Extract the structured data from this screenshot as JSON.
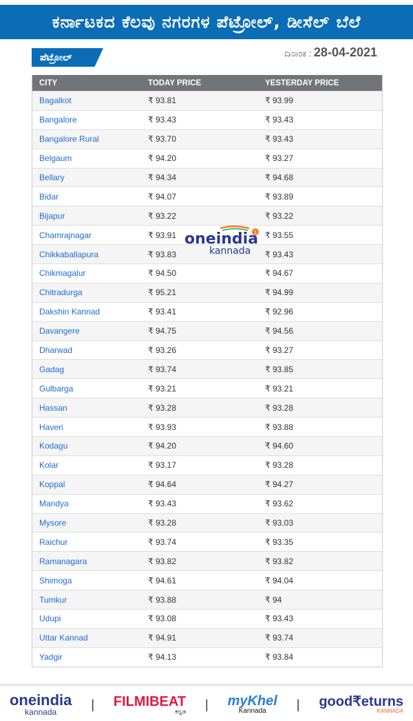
{
  "header": {
    "title": "ಕರ್ನಾಟಕದ ಕೆಲವು ನಗರಗಳ ಪೆಟ್ರೋಲ್, ಡೀಸೆಲ್ ಬೆಲೆ"
  },
  "fuel_tag": "ಪೆಟ್ರೋಲ್",
  "date": {
    "label": "ದಿನಾಂಕ :",
    "value": "28-04-2021"
  },
  "table": {
    "columns": [
      "CITY",
      "TODAY PRICE",
      "YESTERDAY PRICE"
    ],
    "rows": [
      [
        "Bagalkot",
        "₹ 93.81",
        "₹ 93.99"
      ],
      [
        "Bangalore",
        "₹ 93.43",
        "₹ 93.43"
      ],
      [
        "Bangalore Rural",
        "₹ 93.70",
        "₹ 93.43"
      ],
      [
        "Belgaum",
        "₹ 94.20",
        "₹ 93.27"
      ],
      [
        "Bellary",
        "₹ 94.34",
        "₹ 94.68"
      ],
      [
        "Bidar",
        "₹ 94.07",
        "₹ 93.89"
      ],
      [
        "Bijapur",
        "₹ 93.22",
        "₹ 93.22"
      ],
      [
        "Chamrajnagar",
        "₹ 93.91",
        "₹ 93.55"
      ],
      [
        "Chikkaballapura",
        "₹ 93.83",
        "₹ 93.43"
      ],
      [
        "Chikmagalur",
        "₹ 94.50",
        "₹ 94.67"
      ],
      [
        "Chitradurga",
        "₹ 95.21",
        "₹ 94.99"
      ],
      [
        "Dakshin Kannad",
        "₹ 93.41",
        "₹ 92.96"
      ],
      [
        "Davangere",
        "₹ 94.75",
        "₹ 94.56"
      ],
      [
        "Dharwad",
        "₹ 93.26",
        "₹ 93.27"
      ],
      [
        "Gadag",
        "₹ 93.74",
        "₹ 93.85"
      ],
      [
        "Gulbarga",
        "₹ 93.21",
        "₹ 93.21"
      ],
      [
        "Hassan",
        "₹ 93.28",
        "₹ 93.28"
      ],
      [
        "Haveri",
        "₹ 93.93",
        "₹ 93.88"
      ],
      [
        "Kodagu",
        "₹ 94.20",
        "₹ 94.60"
      ],
      [
        "Kolar",
        "₹ 93.17",
        "₹ 93.28"
      ],
      [
        "Koppal",
        "₹ 94.64",
        "₹ 94.27"
      ],
      [
        "Mandya",
        "₹ 93.43",
        "₹ 93.62"
      ],
      [
        "Mysore",
        "₹ 93.28",
        "₹ 93.03"
      ],
      [
        "Raichur",
        "₹ 93.74",
        "₹ 93.35"
      ],
      [
        "Ramanagara",
        "₹ 93.82",
        "₹ 93.82"
      ],
      [
        "Shimoga",
        "₹ 94.61",
        "₹ 94.04"
      ],
      [
        "Tumkur",
        "₹ 93.88",
        "₹ 94"
      ],
      [
        "Udupi",
        "₹ 93.08",
        "₹ 93.43"
      ],
      [
        "Uttar Kannad",
        "₹ 94.91",
        "₹ 93.74"
      ],
      [
        "Yadgir",
        "₹ 94.13",
        "₹ 93.84"
      ]
    ]
  },
  "watermark": {
    "brand": "oneindia",
    "sub": "kannada",
    "badge": "1"
  },
  "footer": {
    "logos": [
      {
        "brand": "oneindia",
        "sub": "kannada"
      },
      {
        "brand": "FILMIBEAT",
        "sub": "ಕನ್ನಡ"
      },
      {
        "brand": "myKhel",
        "sub": "Kannada"
      },
      {
        "brand": "good₹eturns",
        "sub": "KANNADA"
      }
    ]
  },
  "colors": {
    "brand_blue": "#0a6db5",
    "header_gray": "#717578",
    "city_link": "#1f6bd0"
  }
}
